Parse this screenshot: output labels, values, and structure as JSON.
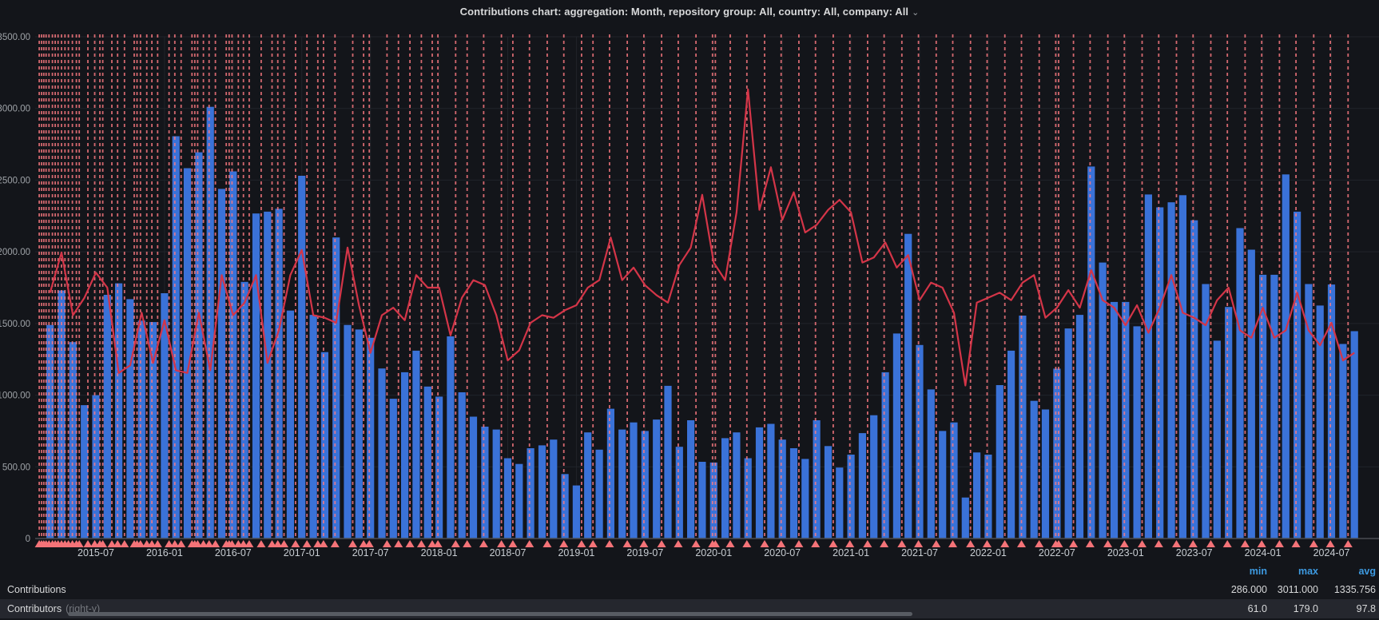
{
  "header": {
    "title": "Contributions chart: aggregation: Month, repository group: All, country: All, company: All",
    "chevron_icon": "chevron-down"
  },
  "y_axis": {
    "tick_labels": [
      "3500.00",
      "3000.00",
      "2500.00",
      "2000.00",
      "1500.00",
      "1000.00",
      "500.00",
      "0"
    ]
  },
  "x_axis": {
    "tick_labels": [
      "2015-07",
      "2016-01",
      "2016-07",
      "2017-01",
      "2017-07",
      "2018-01",
      "2018-07",
      "2019-01",
      "2019-07",
      "2020-01",
      "2020-07",
      "2021-01",
      "2021-07",
      "2022-01",
      "2022-07",
      "2023-01",
      "2023-07",
      "2024-01",
      "2024-07"
    ]
  },
  "legend": {
    "stat_headers": [
      "min",
      "max",
      "avg"
    ],
    "rows": [
      {
        "label": "Contributions",
        "axis_note": "",
        "min": "286.000",
        "max": "3011.000",
        "avg": "1335.756"
      },
      {
        "label": "Contributors",
        "axis_note": "(right-y)",
        "min": "61.0",
        "max": "179.0",
        "avg": "97.8"
      }
    ]
  },
  "colors": {
    "background": "#13151a",
    "bar": "#3a72d8",
    "line": "#d43548",
    "annotation_line": "#ff7b82",
    "annotation_marker": "#f47378",
    "grid": "#21242a",
    "axis_line": "#4a4d53",
    "stat_header_blue": "#3d9ae1",
    "title_text": "#d8d9da",
    "tick_text": "#9fa3a8"
  },
  "chart_data": {
    "type": "bar+line",
    "title": "Contributions chart: aggregation: Month, repository group: All, country: All, company: All",
    "start_month": "2015-03",
    "end_month": "2024-09",
    "left_axis": {
      "min": 0,
      "max": 3500,
      "tick_step": 500
    },
    "right_axis": {
      "min": 0,
      "max": 200,
      "shown": false
    },
    "grid": true,
    "legend_position": "bottom-table",
    "series": [
      {
        "name": "Contributions",
        "type": "bar",
        "axis": "left",
        "min": 286.0,
        "max": 3011.0,
        "avg": 1335.756,
        "values": [
          1490,
          1730,
          1370,
          930,
          1000,
          1700,
          1780,
          1670,
          1520,
          1510,
          1711,
          2806,
          2583,
          2694,
          3011,
          2439,
          2561,
          1790,
          2267,
          2280,
          2300,
          1590,
          2530,
          1560,
          1300,
          2100,
          1490,
          1458,
          1400,
          1186,
          975,
          1160,
          1310,
          1060,
          990,
          1410,
          1020,
          850,
          780,
          760,
          560,
          520,
          630,
          650,
          690,
          450,
          370,
          740,
          620,
          905,
          760,
          810,
          750,
          830,
          1065,
          640,
          825,
          535,
          530,
          700,
          740,
          560,
          775,
          800,
          690,
          630,
          555,
          825,
          645,
          495,
          585,
          735,
          860,
          1160,
          1430,
          2125,
          1350,
          1040,
          750,
          810,
          286,
          600,
          585,
          1070,
          1310,
          1555,
          960,
          900,
          1185,
          1465,
          1560,
          2595,
          1925,
          1650,
          1650,
          1480,
          2400,
          2310,
          2345,
          2395,
          2220,
          1775,
          1380,
          1615,
          2165,
          2015,
          1840,
          1840,
          2540,
          2280,
          1775,
          1625,
          1772,
          1357,
          1446
        ]
      },
      {
        "name": "Contributors",
        "type": "line",
        "axis": "right-y",
        "min": 61.0,
        "max": 179.0,
        "avg": 97.8,
        "values": [
          98,
          114,
          89,
          96,
          106,
          100,
          66,
          69,
          90,
          70,
          87,
          67,
          66,
          90,
          67,
          105,
          89,
          94,
          105,
          70,
          83,
          105,
          115,
          89,
          88,
          86,
          116,
          93,
          74,
          89,
          92,
          87,
          105,
          100,
          100,
          81,
          96,
          103,
          101,
          89,
          71,
          75,
          86,
          89,
          88,
          91,
          93,
          100,
          103,
          120,
          103,
          108,
          101,
          97,
          94,
          109,
          116,
          137,
          110,
          103,
          130,
          179,
          131,
          148,
          127,
          138,
          122,
          125,
          131,
          135,
          130,
          110,
          112,
          118,
          108,
          113,
          95,
          102,
          100,
          90,
          61,
          94,
          96,
          98,
          95,
          102,
          105,
          88,
          92,
          99,
          92,
          107,
          95,
          92,
          85,
          93,
          82,
          92,
          105,
          90,
          88,
          85,
          95,
          100,
          83,
          80,
          92,
          80,
          83,
          98,
          83,
          77,
          86,
          71,
          74
        ]
      }
    ],
    "annotations_month_positions": [
      -0.95,
      -0.75,
      -0.55,
      -0.35,
      -0.1,
      0.2,
      0.45,
      0.7,
      1.0,
      1.3,
      1.6,
      1.95,
      2.3,
      2.55,
      3.3,
      3.9,
      4.35,
      4.6,
      5.4,
      5.9,
      6.5,
      7.35,
      7.6,
      7.9,
      8.45,
      8.9,
      9.4,
      10.4,
      10.9,
      11.45,
      12.4,
      12.65,
      12.9,
      13.4,
      13.9,
      14.45,
      15.4,
      15.65,
      15.9,
      16.45,
      16.9,
      17.4,
      18.45,
      19.4,
      19.9,
      20.45,
      21.45,
      22.45,
      23.4,
      23.9,
      24.9,
      26.45,
      27.4,
      27.9,
      29.45,
      30.45,
      31.45,
      32.45,
      33.4,
      33.9,
      35.45,
      36.45,
      37.9,
      39.45,
      40.45,
      41.9,
      43.45,
      44.9,
      46.45,
      47.45,
      48.9,
      50.45,
      51.9,
      53.45,
      54.9,
      56.45,
      57.9,
      58.15,
      59.45,
      60.9,
      62.45,
      63.9,
      65.45,
      66.9,
      68.45,
      69.9,
      71.45,
      72.9,
      74.45,
      75.9,
      77.45,
      78.9,
      80.45,
      81.9,
      83.45,
      84.9,
      86.45,
      87.9,
      88.15,
      89.45,
      90.9,
      92.45,
      93.9,
      95.45,
      96.9,
      98.45,
      99.9,
      101.45,
      102.9,
      104.45,
      105.9,
      107.45,
      108.9,
      110.45,
      111.9,
      113.45
    ]
  }
}
